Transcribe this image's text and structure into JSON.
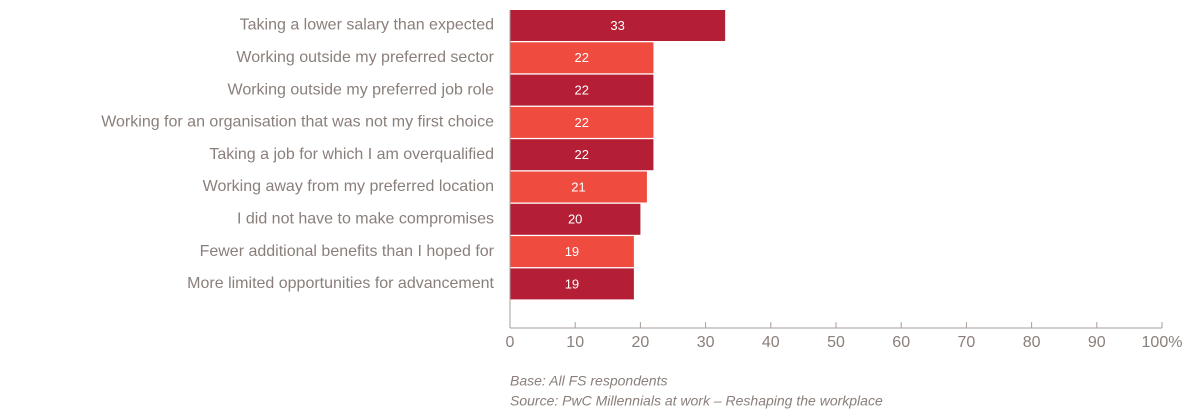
{
  "chart_data": {
    "type": "bar",
    "orientation": "horizontal",
    "categories": [
      "Taking a lower salary than expected",
      "Working outside my preferred sector",
      "Working outside my preferred job role",
      "Working for an organisation that was not my first choice",
      "Taking a job for which I am overqualified",
      "Working away from my preferred location",
      "I did not have to make compromises",
      "Fewer additional benefits than I hoped for",
      "More limited opportunities for advancement"
    ],
    "values": [
      33,
      22,
      22,
      22,
      22,
      21,
      20,
      19,
      19
    ],
    "colors": [
      "#b41f35",
      "#f04b3f",
      "#b41f35",
      "#f04b3f",
      "#b41f35",
      "#f04b3f",
      "#b41f35",
      "#f04b3f",
      "#b41f35"
    ],
    "xlim": [
      0,
      100
    ],
    "xticks": [
      0,
      10,
      20,
      30,
      40,
      50,
      60,
      70,
      80,
      90,
      {
        "value": 100,
        "label": "100%"
      }
    ],
    "notes": [
      "Base: All FS respondents",
      "Source: PwC Millennials at work – Reshaping the workplace"
    ]
  }
}
